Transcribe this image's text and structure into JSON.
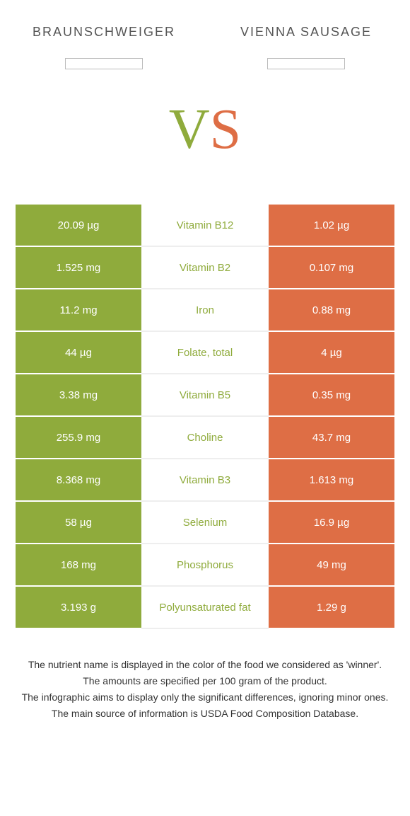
{
  "colors": {
    "left": "#8fab3c",
    "right": "#de6e45",
    "mid_bg": "#ffffff",
    "row_text": "#ffffff"
  },
  "header": {
    "left_name": "Braunschweiger",
    "right_name": "Vienna sausage"
  },
  "vs": {
    "v": "V",
    "s": "S"
  },
  "rows": [
    {
      "left": "20.09 µg",
      "mid": "Vitamin B12",
      "right": "1.02 µg",
      "winner": "left"
    },
    {
      "left": "1.525 mg",
      "mid": "Vitamin B2",
      "right": "0.107 mg",
      "winner": "left"
    },
    {
      "left": "11.2 mg",
      "mid": "Iron",
      "right": "0.88 mg",
      "winner": "left"
    },
    {
      "left": "44 µg",
      "mid": "Folate, total",
      "right": "4 µg",
      "winner": "left"
    },
    {
      "left": "3.38 mg",
      "mid": "Vitamin B5",
      "right": "0.35 mg",
      "winner": "left"
    },
    {
      "left": "255.9 mg",
      "mid": "Choline",
      "right": "43.7 mg",
      "winner": "left"
    },
    {
      "left": "8.368 mg",
      "mid": "Vitamin B3",
      "right": "1.613 mg",
      "winner": "left"
    },
    {
      "left": "58 µg",
      "mid": "Selenium",
      "right": "16.9 µg",
      "winner": "left"
    },
    {
      "left": "168 mg",
      "mid": "Phosphorus",
      "right": "49 mg",
      "winner": "left"
    },
    {
      "left": "3.193 g",
      "mid": "Polyunsaturated fat",
      "right": "1.29 g",
      "winner": "left"
    }
  ],
  "footnotes": [
    "The nutrient name is displayed in the color of the food we considered as 'winner'.",
    "The amounts are specified per 100 gram of the product.",
    "The infographic aims to display only the significant differences, ignoring minor ones.",
    "The main source of information is USDA Food Composition Database."
  ]
}
